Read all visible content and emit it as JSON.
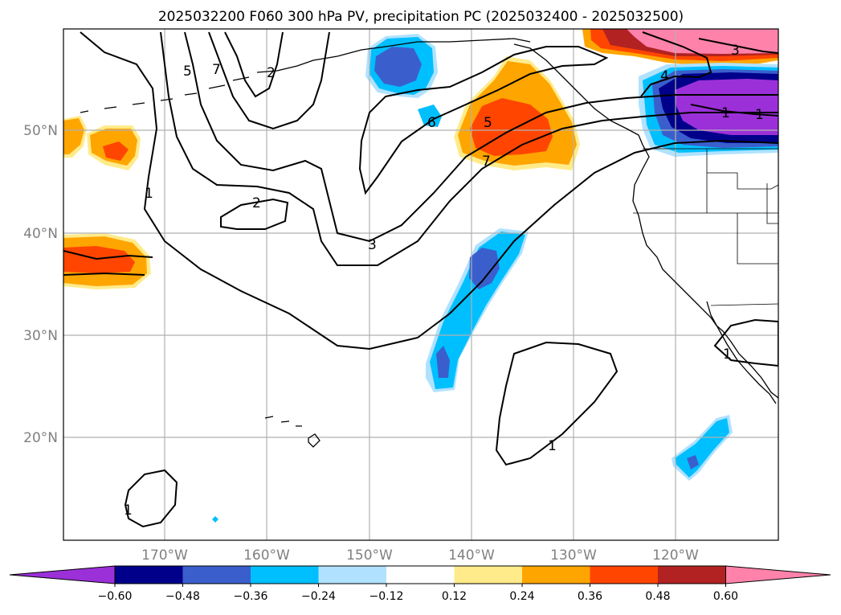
{
  "title": "2025032200 F060 300 hPa PV, precipitation PC (2025032400 - 2025032500)",
  "lat_labels": [
    "50°N",
    "40°N",
    "30°N",
    "20°N"
  ],
  "lon_labels": [
    "170°W",
    "160°W",
    "150°W",
    "140°W",
    "130°W",
    "120°W"
  ],
  "colorbar": {
    "colors": [
      "#9b30d8",
      "#00008b",
      "#3a5fcd",
      "#00bfff",
      "#b0e2ff",
      "#ffffff",
      "#ffeb8a",
      "#ffa500",
      "#ff4500",
      "#b22222",
      "#ff82ab"
    ],
    "tick_labels": [
      "−0.60",
      "−0.48",
      "−0.36",
      "−0.24",
      "−0.12",
      "0.12",
      "0.24",
      "0.36",
      "0.48",
      "0.60"
    ]
  },
  "contour_labels": [
    "1",
    "2",
    "3",
    "4",
    "5",
    "6",
    "7",
    "1",
    "1",
    "1",
    "1",
    "1",
    "2",
    "3",
    "5",
    "7"
  ]
}
